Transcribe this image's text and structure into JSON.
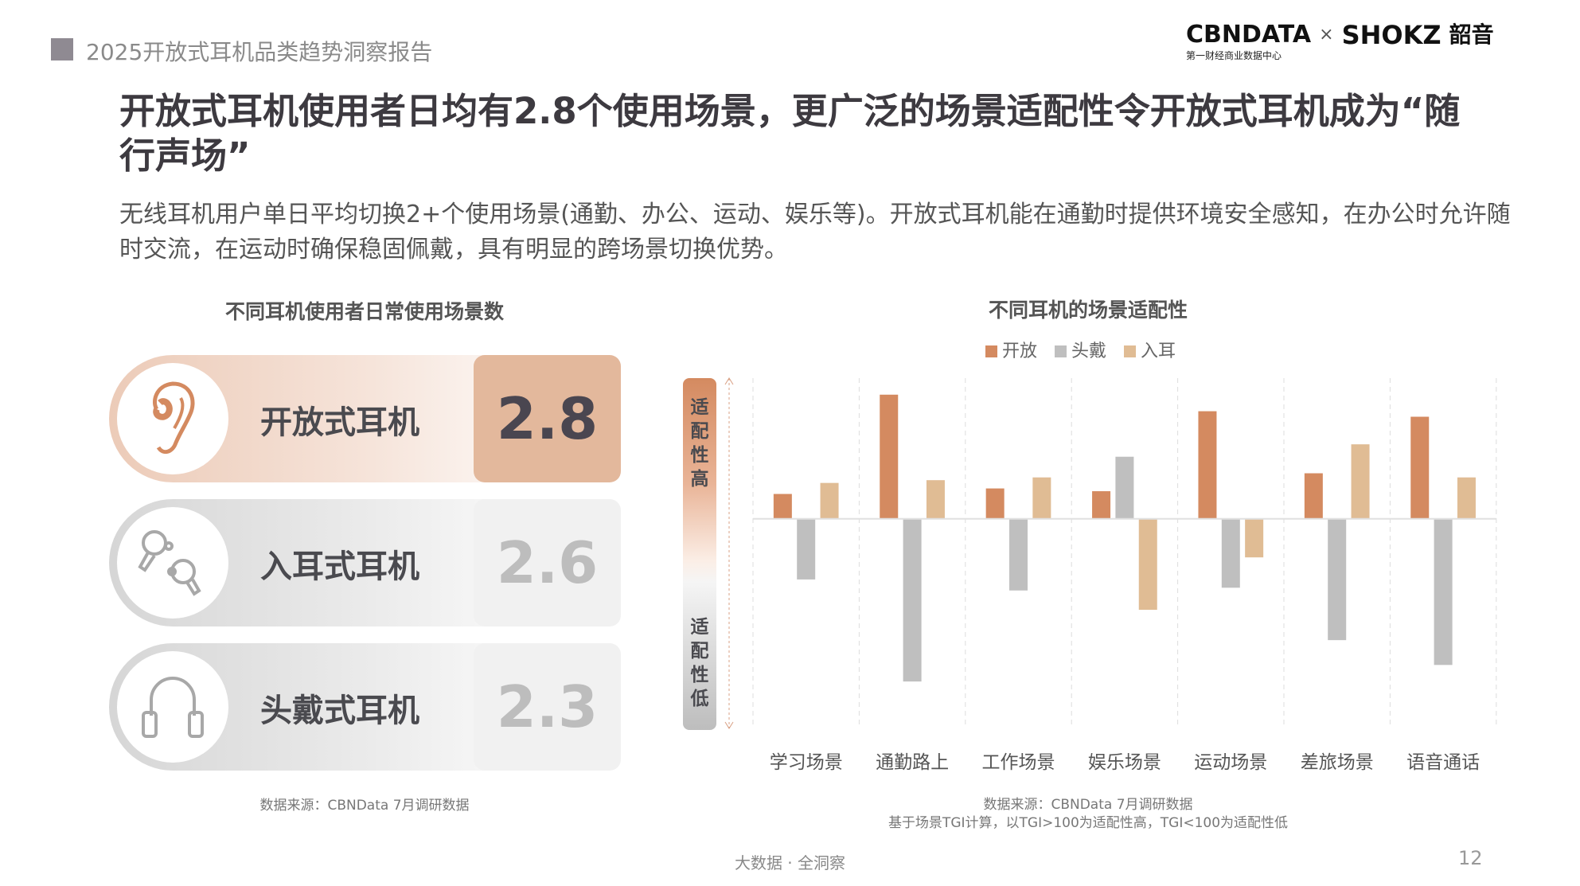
{
  "header": {
    "report_title": "2025开放式耳机品类趋势洞察报告",
    "logo_cbn": "CBNDATA",
    "logo_cbn_sub": "第一财经商业数据中心",
    "logo_x": "×",
    "logo_shokz": "SHOKZ",
    "logo_shokz_cn": "韶音"
  },
  "title": "开放式耳机使用者日均有2.8个使用场景，更广泛的场景适配性令开放式耳机成为“随行声场”",
  "subtitle": "无线耳机用户单日平均切换2+个使用场景(通勤、办公、运动、娱乐等)。开放式耳机能在通勤时提供环境安全感知，在办公时允许随时交流，在运动时确保稳固佩戴，具有明显的跨场景切换优势。",
  "left_panel": {
    "title": "不同耳机使用者日常使用场景数",
    "rows": [
      {
        "label": "开放式耳机",
        "value": "2.8",
        "icon": "ear-icon"
      },
      {
        "label": "入耳式耳机",
        "value": "2.6",
        "icon": "earbuds-icon"
      },
      {
        "label": "头戴式耳机",
        "value": "2.3",
        "icon": "headphones-icon"
      }
    ],
    "source": "数据来源：CBNData 7月调研数据"
  },
  "chart_data": {
    "type": "bar",
    "title": "不同耳机的场景适配性",
    "categories": [
      "学习场景",
      "通勤路上",
      "工作场景",
      "娱乐场景",
      "运动场景",
      "差旅场景",
      "语音通话"
    ],
    "series": [
      {
        "name": "开放",
        "color": "#d48a60",
        "values": [
          109,
          145,
          111,
          110,
          139,
          116.5,
          137
        ]
      },
      {
        "name": "头戴",
        "color": "#bfbfbf",
        "values": [
          78,
          41,
          74,
          122.5,
          75,
          56,
          47
        ]
      },
      {
        "name": "入耳",
        "color": "#e0bc94",
        "values": [
          113,
          114,
          115,
          67,
          86,
          127,
          115
        ]
      }
    ],
    "baseline": 100,
    "ylim": [
      24,
      151
    ],
    "ylabel_high": "适配性高",
    "ylabel_low": "适配性低",
    "grid": "vertical dashed",
    "legend_placement": "top-center",
    "note": "values are estimated TGI (baseline 100)"
  },
  "right_source": [
    "数据来源：CBNData 7月调研数据",
    "基于场景TGI计算，以TGI>100为适配性高，TGI<100为适配性低"
  ],
  "footer": {
    "slogan": "大数据 · 全洞察",
    "page": "12"
  }
}
